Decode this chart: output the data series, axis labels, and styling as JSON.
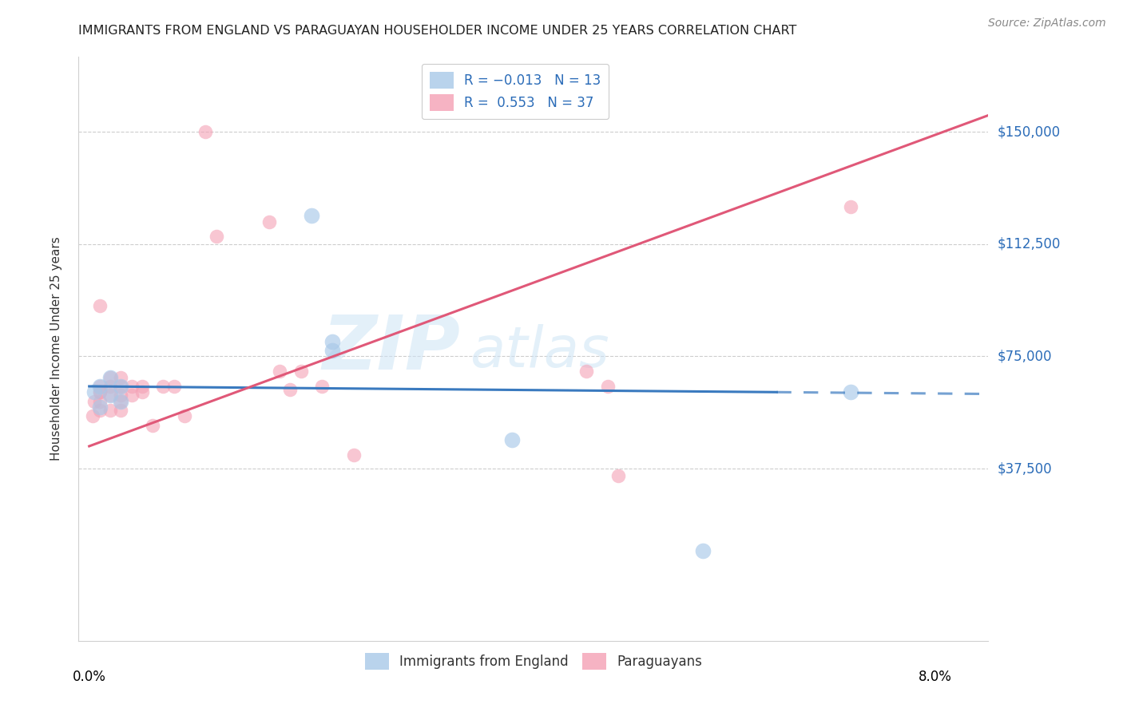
{
  "title": "IMMIGRANTS FROM ENGLAND VS PARAGUAYAN HOUSEHOLDER INCOME UNDER 25 YEARS CORRELATION CHART",
  "source": "Source: ZipAtlas.com",
  "ylabel": "Householder Income Under 25 years",
  "legend_entries": [
    {
      "label": "R = -0.013   N = 13",
      "color": "#a8c8e8"
    },
    {
      "label": "R =  0.553   N = 37",
      "color": "#f4a0b5"
    }
  ],
  "legend_bottom": [
    "Immigrants from England",
    "Paraguayans"
  ],
  "ytick_labels": [
    "$150,000",
    "$112,500",
    "$75,000",
    "$37,500"
  ],
  "ytick_values": [
    150000,
    112500,
    75000,
    37500
  ],
  "ylim": [
    -20000,
    175000
  ],
  "xlim": [
    -0.001,
    0.085
  ],
  "watermark_zip": "ZIP",
  "watermark_atlas": "atlas",
  "blue_color": "#a8c8e8",
  "pink_color": "#f4a0b5",
  "blue_line_color": "#3a7abf",
  "pink_line_color": "#e05878",
  "england_x": [
    0.0005,
    0.001,
    0.001,
    0.002,
    0.002,
    0.003,
    0.003,
    0.021,
    0.023,
    0.023,
    0.04,
    0.058,
    0.072
  ],
  "england_y": [
    63000,
    58000,
    65000,
    62000,
    68000,
    60000,
    65000,
    122000,
    80000,
    77000,
    47000,
    10000,
    63000
  ],
  "paraguayan_x": [
    0.0003,
    0.0005,
    0.001,
    0.001,
    0.001,
    0.001,
    0.001,
    0.001,
    0.002,
    0.002,
    0.002,
    0.002,
    0.003,
    0.003,
    0.003,
    0.003,
    0.003,
    0.004,
    0.004,
    0.005,
    0.005,
    0.006,
    0.007,
    0.008,
    0.009,
    0.011,
    0.012,
    0.017,
    0.018,
    0.019,
    0.02,
    0.022,
    0.025,
    0.047,
    0.049,
    0.05,
    0.072
  ],
  "paraguayan_y": [
    55000,
    60000,
    57000,
    60000,
    63000,
    65000,
    92000,
    63000,
    57000,
    62000,
    65000,
    68000,
    57000,
    60000,
    62000,
    65000,
    68000,
    62000,
    65000,
    63000,
    65000,
    52000,
    65000,
    65000,
    55000,
    150000,
    115000,
    120000,
    70000,
    64000,
    70000,
    65000,
    42000,
    70000,
    65000,
    35000,
    125000
  ],
  "blue_scatter_size": 200,
  "pink_scatter_size": 160,
  "background_color": "#ffffff",
  "grid_color": "#c8c8c8",
  "blue_line_solid_end": 0.065,
  "blue_line_dashed_start": 0.065,
  "blue_line_y_intercept": 65000,
  "blue_line_slope": -30000,
  "pink_line_slope": 1300000,
  "pink_line_y_intercept": 45000
}
